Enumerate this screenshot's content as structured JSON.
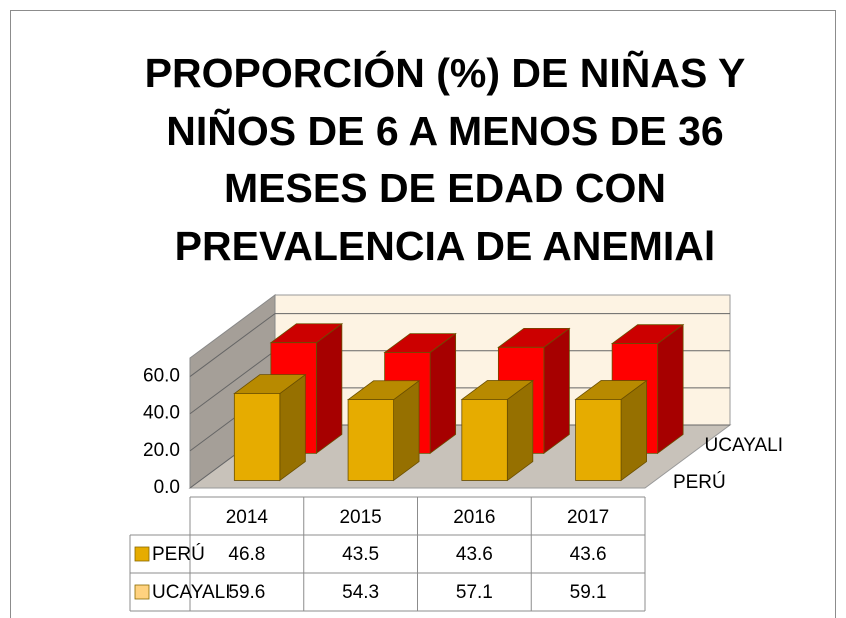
{
  "chart_data": {
    "type": "bar3d",
    "title": [
      "PROPORCIÓN (%) DE NIÑAS Y",
      "NIÑOS DE 6 A MENOS DE 36",
      "MESES DE EDAD CON",
      "PREVALENCIA DE ANEMIAl"
    ],
    "categories": [
      "2014",
      "2015",
      "2016",
      "2017"
    ],
    "series": [
      {
        "name": "PERÚ",
        "color": "#e6ac00",
        "key_color": "#e6ac00",
        "values": [
          46.8,
          43.5,
          43.6,
          43.6
        ]
      },
      {
        "name": "UCAYALI",
        "color": "#ff0000",
        "key_color": "#ffd27f",
        "values": [
          59.6,
          54.3,
          57.1,
          59.1
        ]
      }
    ],
    "ylim": [
      0,
      70
    ],
    "yticks": [
      {
        "value": 0,
        "label": "0.0"
      },
      {
        "value": 20,
        "label": "20.0"
      },
      {
        "value": 40,
        "label": "40.0"
      },
      {
        "value": 60,
        "label": "60.0"
      }
    ],
    "grid": true,
    "data_table": true
  }
}
